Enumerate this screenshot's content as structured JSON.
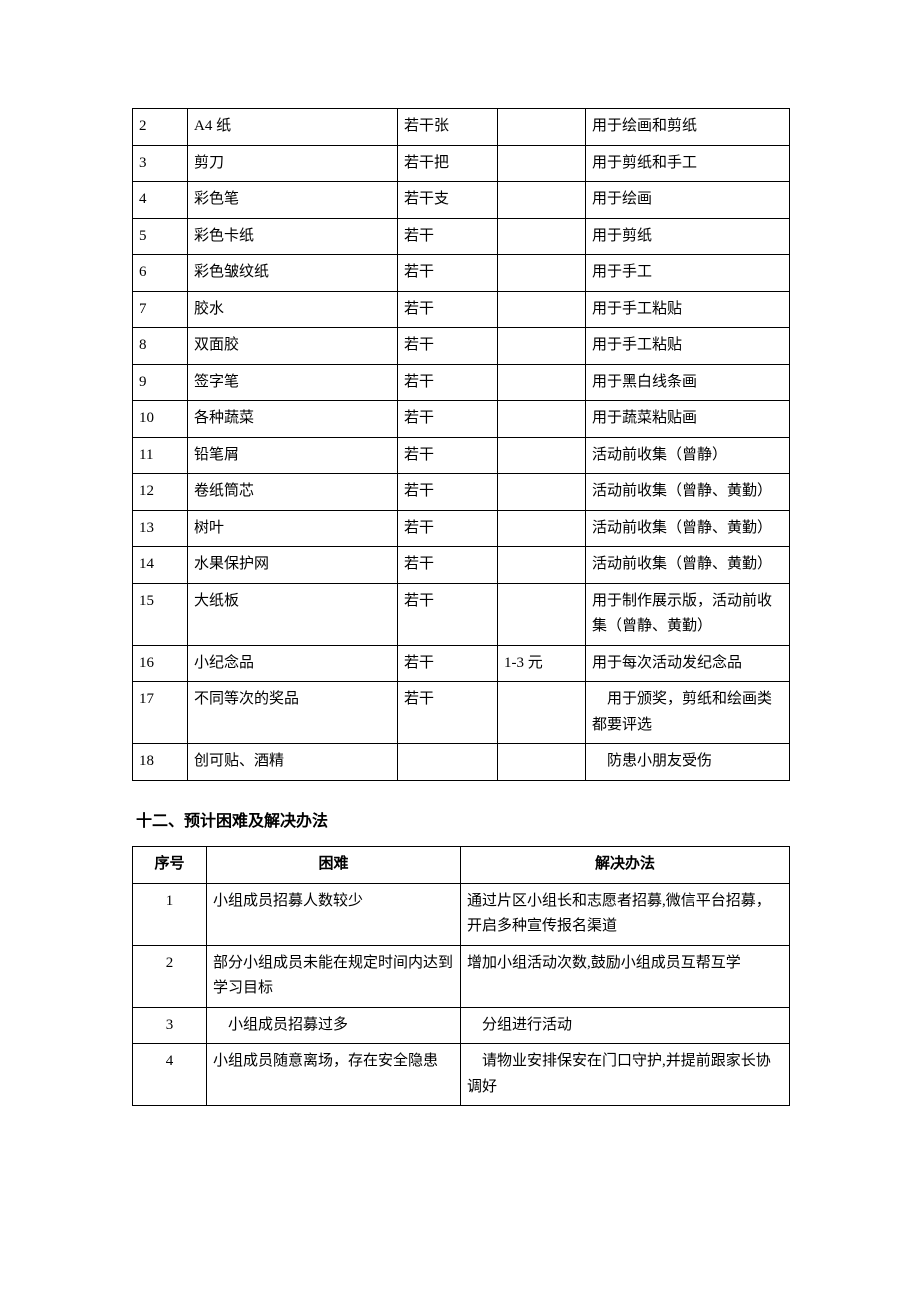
{
  "materials_table": {
    "columns": [],
    "rows": [
      {
        "num": "2",
        "item": "A4 纸",
        "qty": "若干张",
        "price": "",
        "note": "用于绘画和剪纸"
      },
      {
        "num": "3",
        "item": "剪刀",
        "qty": "若干把",
        "price": "",
        "note": "用于剪纸和手工"
      },
      {
        "num": "4",
        "item": "彩色笔",
        "qty": "若干支",
        "price": "",
        "note": "用于绘画"
      },
      {
        "num": "5",
        "item": "彩色卡纸",
        "qty": "若干",
        "price": "",
        "note": "用于剪纸"
      },
      {
        "num": "6",
        "item": "彩色皱纹纸",
        "qty": "若干",
        "price": "",
        "note": "用于手工"
      },
      {
        "num": "7",
        "item": "胶水",
        "qty": "若干",
        "price": "",
        "note": "用于手工粘贴"
      },
      {
        "num": "8",
        "item": "双面胶",
        "qty": "若干",
        "price": "",
        "note": "用于手工粘贴"
      },
      {
        "num": "9",
        "item": "签字笔",
        "qty": "若干",
        "price": "",
        "note": "用于黑白线条画"
      },
      {
        "num": "10",
        "item": "各种蔬菜",
        "qty": "若干",
        "price": "",
        "note": "用于蔬菜粘贴画"
      },
      {
        "num": "11",
        "item": "铅笔屑",
        "qty": "若干",
        "price": "",
        "note": "活动前收集（曾静）"
      },
      {
        "num": "12",
        "item": "卷纸筒芯",
        "qty": "若干",
        "price": "",
        "note": "活动前收集（曾静、黄勤）"
      },
      {
        "num": "13",
        "item": "树叶",
        "qty": "若干",
        "price": "",
        "note": "活动前收集（曾静、黄勤）"
      },
      {
        "num": "14",
        "item": "水果保护网",
        "qty": "若干",
        "price": "",
        "note": "活动前收集（曾静、黄勤）"
      },
      {
        "num": "15",
        "item": "大纸板",
        "qty": "若干",
        "price": "",
        "note": "用于制作展示版，活动前收集（曾静、黄勤）"
      },
      {
        "num": "16",
        "item": "小纪念品",
        "qty": "若干",
        "price": "1-3 元",
        "note": "用于每次活动发纪念品"
      },
      {
        "num": "17",
        "item": "不同等次的奖品",
        "qty": "若干",
        "price": "",
        "note": "　用于颁奖，剪纸和绘画类都要评选"
      },
      {
        "num": "18",
        "item": "创可贴、酒精",
        "qty": "",
        "price": "",
        "note": "　防患小朋友受伤"
      }
    ]
  },
  "section_heading": "十二、预计困难及解决办法",
  "difficulties_table": {
    "headers": {
      "num": "序号",
      "difficulty": "困难",
      "solution": "解决办法"
    },
    "rows": [
      {
        "num": "1",
        "difficulty": "小组成员招募人数较少",
        "solution": "通过片区小组长和志愿者招募,微信平台招募，开启多种宣传报名渠道"
      },
      {
        "num": "2",
        "difficulty": "部分小组成员未能在规定时间内达到学习目标",
        "solution": "增加小组活动次数,鼓励小组成员互帮互学"
      },
      {
        "num": "3",
        "difficulty": "　小组成员招募过多",
        "solution": "　分组进行活动"
      },
      {
        "num": "4",
        "difficulty": "小组成员随意离场，存在安全隐患",
        "solution": "　请物业安排保安在门口守护,并提前跟家长协调好"
      }
    ]
  }
}
